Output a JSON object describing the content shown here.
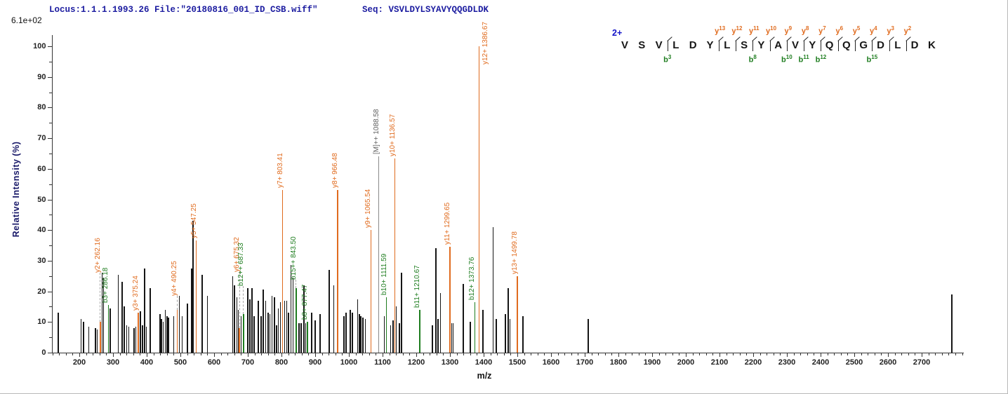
{
  "header": {
    "locus_file": "Locus:1.1.1.1993.26 File:\"20180816_001_ID_CSB.wiff\"",
    "seq": "Seq: VSVLDYLSYAVYQQGDLDK"
  },
  "peptide": {
    "charge_label": "2+",
    "residues": [
      "V",
      "S",
      "V",
      "L",
      "D",
      "Y",
      "L",
      "S",
      "Y",
      "A",
      "V",
      "Y",
      "Q",
      "Q",
      "G",
      "D",
      "L",
      "D",
      "K"
    ],
    "y_marks": [
      {
        "after": 6,
        "sub": "13"
      },
      {
        "after": 7,
        "sub": "12"
      },
      {
        "after": 8,
        "sub": "11"
      },
      {
        "after": 9,
        "sub": "10"
      },
      {
        "after": 10,
        "sub": "9"
      },
      {
        "after": 11,
        "sub": "8"
      },
      {
        "after": 12,
        "sub": "7"
      },
      {
        "after": 13,
        "sub": "6"
      },
      {
        "after": 14,
        "sub": "5"
      },
      {
        "after": 15,
        "sub": "4"
      },
      {
        "after": 16,
        "sub": "3"
      },
      {
        "after": 17,
        "sub": "2"
      }
    ],
    "b_marks": [
      {
        "after": 3,
        "sub": "3"
      },
      {
        "after": 8,
        "sub": "8"
      },
      {
        "after": 10,
        "sub": "10"
      },
      {
        "after": 11,
        "sub": "11"
      },
      {
        "after": 12,
        "sub": "12"
      },
      {
        "after": 15,
        "sub": "15"
      }
    ]
  },
  "colors": {
    "y_ion": "#e06b1e",
    "b_ion": "#1e7d1f",
    "precursor_line": "#8a8a8a",
    "precursor_label": "#5f5f5f",
    "peak": "#151515"
  },
  "chart_data": {
    "type": "bar",
    "subtype": "MS/MS fragment stick spectrum",
    "xlabel": "m/z",
    "ylabel": "Relative  Intensity (%)",
    "base_peak_intensity": "6.1e+02",
    "xlim": [
      117,
      2825
    ],
    "ylim": [
      0,
      100
    ],
    "x_ticks": [
      200,
      300,
      400,
      500,
      600,
      700,
      800,
      900,
      1000,
      1100,
      1200,
      1300,
      1400,
      1500,
      1600,
      1700,
      1800,
      1900,
      2000,
      2100,
      2200,
      2300,
      2400,
      2500,
      2600,
      2700
    ],
    "y_ticks": [
      0,
      10,
      20,
      30,
      40,
      50,
      60,
      70,
      80,
      90,
      100
    ],
    "labeled_ions": [
      {
        "label": "y2+ 262.16",
        "type": "y",
        "mz": 262.16,
        "pct": 10,
        "gap": 70
      },
      {
        "label": "b3+ 286.18",
        "type": "b",
        "mz": 286.18,
        "pct": 15.5
      },
      {
        "label": "y3+ 375.24",
        "type": "y",
        "mz": 375.24,
        "pct": 13
      },
      {
        "label": "y4+ 490.25",
        "type": "y",
        "mz": 490.25,
        "pct": 14,
        "gap": 20
      },
      {
        "label": "y5+ 547.25",
        "type": "y",
        "mz": 547.25,
        "pct": 36.5
      },
      {
        "label": "y6+ 675.32",
        "type": "y",
        "mz": 675.32,
        "pct": 8,
        "gap": 80
      },
      {
        "label": "b12++ 687.33",
        "type": "b",
        "mz": 687.33,
        "pct": 12.5,
        "gap": 40
      },
      {
        "label": "y7+ 803.41",
        "type": "y",
        "mz": 803.41,
        "pct": 53
      },
      {
        "label": "b15++ 843.50",
        "type": "b",
        "mz": 843.5,
        "pct": 21,
        "gap": 12
      },
      {
        "label": "b8+ 877.47",
        "type": "b",
        "mz": 877.47,
        "pct": 10
      },
      {
        "label": "y8+ 966.48",
        "type": "y",
        "mz": 966.48,
        "pct": 53
      },
      {
        "label": "y9+ 1065.54",
        "type": "y",
        "mz": 1065.54,
        "pct": 40
      },
      {
        "label": "[M]++ 1088.58",
        "type": "precursor",
        "mz": 1088.58,
        "pct": 64
      },
      {
        "label": "b10+ 1111.59",
        "type": "b",
        "mz": 1111.59,
        "pct": 18
      },
      {
        "label": "y10+ 1136.57",
        "type": "y",
        "mz": 1136.57,
        "pct": 63.5
      },
      {
        "label": "b11+ 1210.67",
        "type": "b",
        "mz": 1210.67,
        "pct": 14
      },
      {
        "label": "y11+ 1299.65",
        "type": "y",
        "mz": 1299.65,
        "pct": 34.5
      },
      {
        "label": "b12+ 1373.76",
        "type": "b",
        "mz": 1373.76,
        "pct": 16.5
      },
      {
        "label": "y12+ 1386.67",
        "type": "y",
        "mz": 1386.67,
        "pct": 100,
        "gap": -26,
        "dx": 3
      },
      {
        "label": "y13+ 1499.78",
        "type": "y",
        "mz": 1499.78,
        "pct": 25
      }
    ],
    "unlabeled_peaks": [
      [
        138,
        13
      ],
      [
        205,
        11
      ],
      [
        212,
        10
      ],
      [
        228,
        8.5
      ],
      [
        248,
        8
      ],
      [
        253,
        7.5
      ],
      [
        268,
        26
      ],
      [
        272,
        24.5
      ],
      [
        292,
        14.5
      ],
      [
        316,
        25.5
      ],
      [
        327,
        23
      ],
      [
        333,
        15
      ],
      [
        341,
        9
      ],
      [
        347,
        8.5
      ],
      [
        362,
        8
      ],
      [
        368,
        8.5
      ],
      [
        381,
        13.5
      ],
      [
        387,
        9
      ],
      [
        394,
        27.5
      ],
      [
        399,
        8.5
      ],
      [
        410,
        21
      ],
      [
        439,
        12.5
      ],
      [
        444,
        11
      ],
      [
        449,
        10
      ],
      [
        455,
        14
      ],
      [
        460,
        12
      ],
      [
        465,
        11.5
      ],
      [
        480,
        12
      ],
      [
        497,
        18.5
      ],
      [
        505,
        12
      ],
      [
        521,
        16
      ],
      [
        533,
        27.5
      ],
      [
        537,
        43
      ],
      [
        565,
        25.5
      ],
      [
        580,
        18.5
      ],
      [
        655,
        25
      ],
      [
        661,
        22
      ],
      [
        668,
        18
      ],
      [
        672,
        14
      ],
      [
        680,
        12
      ],
      [
        700,
        21
      ],
      [
        706,
        17.5
      ],
      [
        712,
        21
      ],
      [
        719,
        12
      ],
      [
        731,
        17
      ],
      [
        739,
        12
      ],
      [
        746,
        20.5
      ],
      [
        753,
        17
      ],
      [
        760,
        13
      ],
      [
        766,
        12.5
      ],
      [
        772,
        18.5
      ],
      [
        779,
        18
      ],
      [
        786,
        9
      ],
      [
        791,
        14.5
      ],
      [
        797,
        16.5
      ],
      [
        809,
        17
      ],
      [
        816,
        17
      ],
      [
        821,
        13
      ],
      [
        828,
        28.5
      ],
      [
        834,
        24.5
      ],
      [
        852,
        9.5
      ],
      [
        858,
        9.5
      ],
      [
        867,
        22
      ],
      [
        872,
        9.5
      ],
      [
        890,
        13
      ],
      [
        900,
        10.5
      ],
      [
        915,
        12.5
      ],
      [
        942,
        27
      ],
      [
        955,
        22
      ],
      [
        985,
        12
      ],
      [
        992,
        13
      ],
      [
        1004,
        14
      ],
      [
        1010,
        13
      ],
      [
        1026,
        17.5
      ],
      [
        1031,
        12.5
      ],
      [
        1036,
        12
      ],
      [
        1042,
        11.5
      ],
      [
        1049,
        11
      ],
      [
        1105,
        12
      ],
      [
        1124,
        9
      ],
      [
        1131,
        10.5
      ],
      [
        1141,
        15
      ],
      [
        1150,
        9.5
      ],
      [
        1156,
        26
      ],
      [
        1248,
        9
      ],
      [
        1258,
        34
      ],
      [
        1265,
        11
      ],
      [
        1272,
        19.5
      ],
      [
        1305,
        9.5
      ],
      [
        1309,
        9.5
      ],
      [
        1340,
        22.5
      ],
      [
        1360,
        10
      ],
      [
        1398,
        14
      ],
      [
        1428,
        41
      ],
      [
        1437,
        11
      ],
      [
        1464,
        12.5
      ],
      [
        1473,
        21
      ],
      [
        1478,
        11
      ],
      [
        1517,
        12
      ],
      [
        1710,
        11
      ],
      [
        2790,
        19
      ]
    ]
  }
}
